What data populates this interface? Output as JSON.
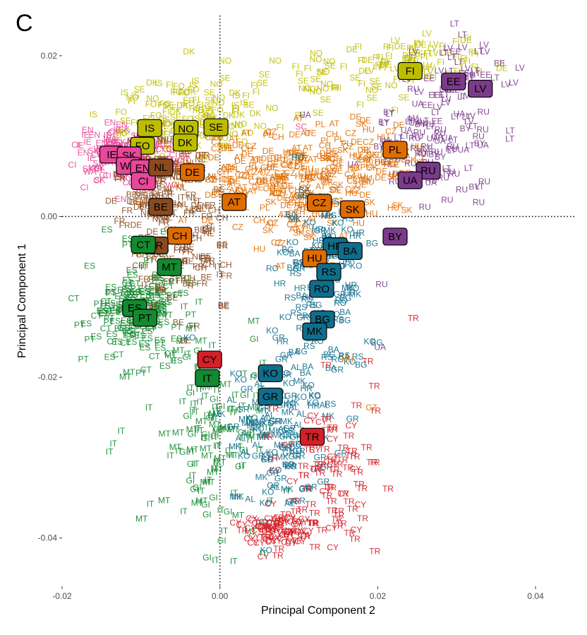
{
  "chart_data": {
    "type": "scatter",
    "panel_letter": "C",
    "xlabel": "Principal Component 2",
    "ylabel": "Principal Component 1",
    "xlim": [
      -0.02,
      0.045
    ],
    "ylim": [
      -0.046,
      0.025
    ],
    "xticks": [
      -0.02,
      0.0,
      0.02,
      0.04
    ],
    "xtick_labels": [
      "-0.02",
      "0.00",
      "0.02",
      "0.04"
    ],
    "yticks": [
      -0.04,
      -0.02,
      0.0,
      0.02
    ],
    "ytick_labels": [
      "-0.04",
      "-0.02",
      "0.00",
      "0.02"
    ],
    "reference_lines": {
      "x": 0.0,
      "y": 0.0,
      "style": "dotted"
    },
    "grid": false,
    "legend": "none",
    "colors": {
      "nordic": "#bdbd00",
      "west": "#e8489a",
      "central": "#e06c00",
      "northwest": "#8a4a1e",
      "south": "#138a30",
      "balkan": "#0f6e8c",
      "turkey": "#d42027",
      "east": "#7b3b8a"
    },
    "country_centroids": [
      {
        "label": "FI",
        "x": 0.0241,
        "y": 0.0181,
        "group": "nordic"
      },
      {
        "label": "EE",
        "x": 0.0296,
        "y": 0.0168,
        "group": "east"
      },
      {
        "label": "LV",
        "x": 0.033,
        "y": 0.0159,
        "group": "east"
      },
      {
        "label": "IS",
        "x": -0.0089,
        "y": 0.011,
        "group": "nordic"
      },
      {
        "label": "NO",
        "x": -0.0043,
        "y": 0.0109,
        "group": "nordic"
      },
      {
        "label": "SE",
        "x": -0.0005,
        "y": 0.0111,
        "group": "nordic"
      },
      {
        "label": "DK",
        "x": -0.0044,
        "y": 0.0092,
        "group": "nordic"
      },
      {
        "label": "FO",
        "x": -0.0098,
        "y": 0.0088,
        "group": "nordic"
      },
      {
        "label": "IE",
        "x": -0.0137,
        "y": 0.0077,
        "group": "west"
      },
      {
        "label": "SK",
        "x": -0.0115,
        "y": 0.0076,
        "group": "west"
      },
      {
        "label": "WA",
        "x": -0.0116,
        "y": 0.0063,
        "group": "west"
      },
      {
        "label": "EN",
        "x": -0.0098,
        "y": 0.006,
        "group": "west"
      },
      {
        "label": "CI",
        "x": -0.0097,
        "y": 0.0044,
        "group": "west"
      },
      {
        "label": "NL",
        "x": -0.0075,
        "y": 0.0061,
        "group": "northwest"
      },
      {
        "label": "DE",
        "x": -0.0035,
        "y": 0.0055,
        "group": "central"
      },
      {
        "label": "PL",
        "x": 0.0222,
        "y": 0.0083,
        "group": "central"
      },
      {
        "label": "RU",
        "x": 0.0264,
        "y": 0.0057,
        "group": "east"
      },
      {
        "label": "UA",
        "x": 0.0241,
        "y": 0.0045,
        "group": "east"
      },
      {
        "label": "AT",
        "x": 0.0018,
        "y": 0.0018,
        "group": "central"
      },
      {
        "label": "CZ",
        "x": 0.0126,
        "y": 0.0017,
        "group": "central"
      },
      {
        "label": "SK",
        "x": 0.0168,
        "y": 0.0009,
        "group": "central"
      },
      {
        "label": "BE",
        "x": -0.0075,
        "y": 0.0012,
        "group": "northwest"
      },
      {
        "label": "CH",
        "x": -0.0051,
        "y": -0.0024,
        "group": "central"
      },
      {
        "label": "BY",
        "x": 0.0222,
        "y": -0.0025,
        "group": "east"
      },
      {
        "label": "FR",
        "x": -0.0081,
        "y": -0.0036,
        "group": "northwest"
      },
      {
        "label": "CT",
        "x": -0.0097,
        "y": -0.0035,
        "group": "south"
      },
      {
        "label": "HR",
        "x": 0.0146,
        "y": -0.0037,
        "group": "balkan"
      },
      {
        "label": "BA",
        "x": 0.0165,
        "y": -0.0043,
        "group": "balkan"
      },
      {
        "label": "HU",
        "x": 0.012,
        "y": -0.0052,
        "group": "central"
      },
      {
        "label": "MT",
        "x": -0.0064,
        "y": -0.0063,
        "group": "south"
      },
      {
        "label": "RS",
        "x": 0.0138,
        "y": -0.0069,
        "group": "balkan"
      },
      {
        "label": "RO",
        "x": 0.0129,
        "y": -0.009,
        "group": "balkan"
      },
      {
        "label": "ES",
        "x": -0.0108,
        "y": -0.0114,
        "group": "south"
      },
      {
        "label": "PT",
        "x": -0.0095,
        "y": -0.0126,
        "group": "south"
      },
      {
        "label": "BG",
        "x": 0.013,
        "y": -0.0128,
        "group": "balkan"
      },
      {
        "label": "MK",
        "x": 0.012,
        "y": -0.0143,
        "group": "balkan"
      },
      {
        "label": "CY",
        "x": -0.0013,
        "y": -0.0178,
        "group": "turkey"
      },
      {
        "label": "IT",
        "x": -0.0016,
        "y": -0.0201,
        "group": "south"
      },
      {
        "label": "KO",
        "x": 0.0064,
        "y": -0.0195,
        "group": "balkan"
      },
      {
        "label": "GR",
        "x": 0.0064,
        "y": -0.0224,
        "group": "balkan"
      },
      {
        "label": "TR",
        "x": 0.0117,
        "y": -0.0274,
        "group": "turkey"
      }
    ],
    "clusters": [
      {
        "group": "nordic",
        "labels": [
          "FI",
          "LV",
          "DE",
          "FI",
          "FI"
        ],
        "cx": 0.025,
        "cy": 0.0195,
        "sx": 0.005,
        "sy": 0.0016,
        "n": 70
      },
      {
        "group": "nordic",
        "labels": [
          "SE",
          "NO",
          "DK",
          "IS",
          "FI",
          "FO"
        ],
        "cx": -0.003,
        "cy": 0.0118,
        "sx": 0.0045,
        "sy": 0.0022,
        "n": 130
      },
      {
        "group": "nordic",
        "labels": [
          "FI",
          "NO",
          "SE"
        ],
        "cx": 0.014,
        "cy": 0.0165,
        "sx": 0.004,
        "sy": 0.002,
        "n": 40
      },
      {
        "group": "east",
        "labels": [
          "LV",
          "LT",
          "EE",
          "LV",
          "LT"
        ],
        "cx": 0.03,
        "cy": 0.017,
        "sx": 0.003,
        "sy": 0.003,
        "n": 60
      },
      {
        "group": "east",
        "labels": [
          "RU",
          "UA",
          "BY",
          "RU",
          "LT"
        ],
        "cx": 0.027,
        "cy": 0.008,
        "sx": 0.004,
        "sy": 0.003,
        "n": 80
      },
      {
        "group": "west",
        "labels": [
          "IE",
          "WA",
          "EN",
          "SK",
          "CI"
        ],
        "cx": -0.012,
        "cy": 0.0075,
        "sx": 0.003,
        "sy": 0.002,
        "n": 150
      },
      {
        "group": "northwest",
        "labels": [
          "NL",
          "BE",
          "FR",
          "DE",
          "NL"
        ],
        "cx": -0.007,
        "cy": 0.0035,
        "sx": 0.003,
        "sy": 0.003,
        "n": 110
      },
      {
        "group": "central",
        "labels": [
          "DE",
          "AT",
          "CH",
          "DE",
          "PL",
          "CZ"
        ],
        "cx": 0.005,
        "cy": 0.005,
        "sx": 0.006,
        "sy": 0.003,
        "n": 150
      },
      {
        "group": "central",
        "labels": [
          "PL",
          "DE",
          "CZ",
          "SK",
          "HU"
        ],
        "cx": 0.017,
        "cy": 0.006,
        "sx": 0.004,
        "sy": 0.003,
        "n": 90
      },
      {
        "group": "central",
        "labels": [
          "CZ",
          "HU",
          "SK",
          "AT"
        ],
        "cx": 0.011,
        "cy": 0.0,
        "sx": 0.003,
        "sy": 0.003,
        "n": 50
      },
      {
        "group": "south",
        "labels": [
          "ES",
          "PT",
          "ES",
          "CT",
          "ES"
        ],
        "cx": -0.0105,
        "cy": -0.012,
        "sx": 0.003,
        "sy": 0.003,
        "n": 160
      },
      {
        "group": "south",
        "labels": [
          "IT",
          "MT",
          "GI",
          "IT"
        ],
        "cx": -0.001,
        "cy": -0.028,
        "sx": 0.0035,
        "sy": 0.0065,
        "n": 140
      },
      {
        "group": "northwest",
        "labels": [
          "FR",
          "CH",
          "IT",
          "FR",
          "BE"
        ],
        "cx": -0.004,
        "cy": -0.006,
        "sx": 0.003,
        "sy": 0.004,
        "n": 80
      },
      {
        "group": "balkan",
        "labels": [
          "HR",
          "BA",
          "RS",
          "RO",
          "BG",
          "MK",
          "KO",
          "GR"
        ],
        "cx": 0.013,
        "cy": -0.008,
        "sx": 0.0025,
        "sy": 0.006,
        "n": 130
      },
      {
        "group": "balkan",
        "labels": [
          "GR",
          "KO",
          "AL",
          "MK",
          "GR"
        ],
        "cx": 0.008,
        "cy": -0.027,
        "sx": 0.0035,
        "sy": 0.0055,
        "n": 120
      },
      {
        "group": "turkey",
        "labels": [
          "TR",
          "TR",
          "CY",
          "TR"
        ],
        "cx": 0.014,
        "cy": -0.032,
        "sx": 0.003,
        "sy": 0.005,
        "n": 90
      },
      {
        "group": "turkey",
        "labels": [
          "CY",
          "CY",
          "CY",
          "TR"
        ],
        "cx": 0.007,
        "cy": -0.0395,
        "sx": 0.002,
        "sy": 0.0012,
        "n": 80
      }
    ],
    "scattered_labels": [
      {
        "label": "IT",
        "x": -0.009,
        "y": -0.0241,
        "group": "south"
      },
      {
        "label": "IT",
        "x": -0.0125,
        "y": -0.027,
        "group": "south"
      },
      {
        "label": "IT",
        "x": -0.0135,
        "y": -0.0286,
        "group": "south"
      },
      {
        "label": "IT",
        "x": -0.014,
        "y": -0.0296,
        "group": "south"
      },
      {
        "label": "GI",
        "x": -0.0018,
        "y": -0.0362,
        "group": "south"
      },
      {
        "label": "MT",
        "x": 0.0023,
        "y": -0.0375,
        "group": "south"
      },
      {
        "label": "TR",
        "x": 0.0245,
        "y": -0.013,
        "group": "turkey"
      },
      {
        "label": "UA",
        "x": 0.0203,
        "y": -0.0166,
        "group": "east"
      },
      {
        "label": "RU",
        "x": 0.0288,
        "y": 0.0017,
        "group": "east"
      },
      {
        "label": "RU",
        "x": 0.0328,
        "y": 0.0014,
        "group": "east"
      },
      {
        "label": "UA",
        "x": 0.0108,
        "y": 0.0123,
        "group": "east"
      },
      {
        "label": "CZ",
        "x": 0.0192,
        "y": -0.0241,
        "group": "central"
      },
      {
        "label": "HU",
        "x": 0.0162,
        "y": -0.0181,
        "group": "central"
      },
      {
        "label": "RU",
        "x": 0.0205,
        "y": -0.0088,
        "group": "east"
      },
      {
        "label": "TR",
        "x": 0.0148,
        "y": -0.038,
        "group": "turkey"
      },
      {
        "label": "SC",
        "x": 0.0103,
        "y": 0.0108,
        "group": "west"
      },
      {
        "label": "AT",
        "x": 0.0145,
        "y": 0.0112,
        "group": "central"
      },
      {
        "label": "ES",
        "x": -0.0165,
        "y": -0.0065,
        "group": "south"
      },
      {
        "label": "ES",
        "x": -0.0145,
        "y": -0.0115,
        "group": "south"
      }
    ]
  }
}
